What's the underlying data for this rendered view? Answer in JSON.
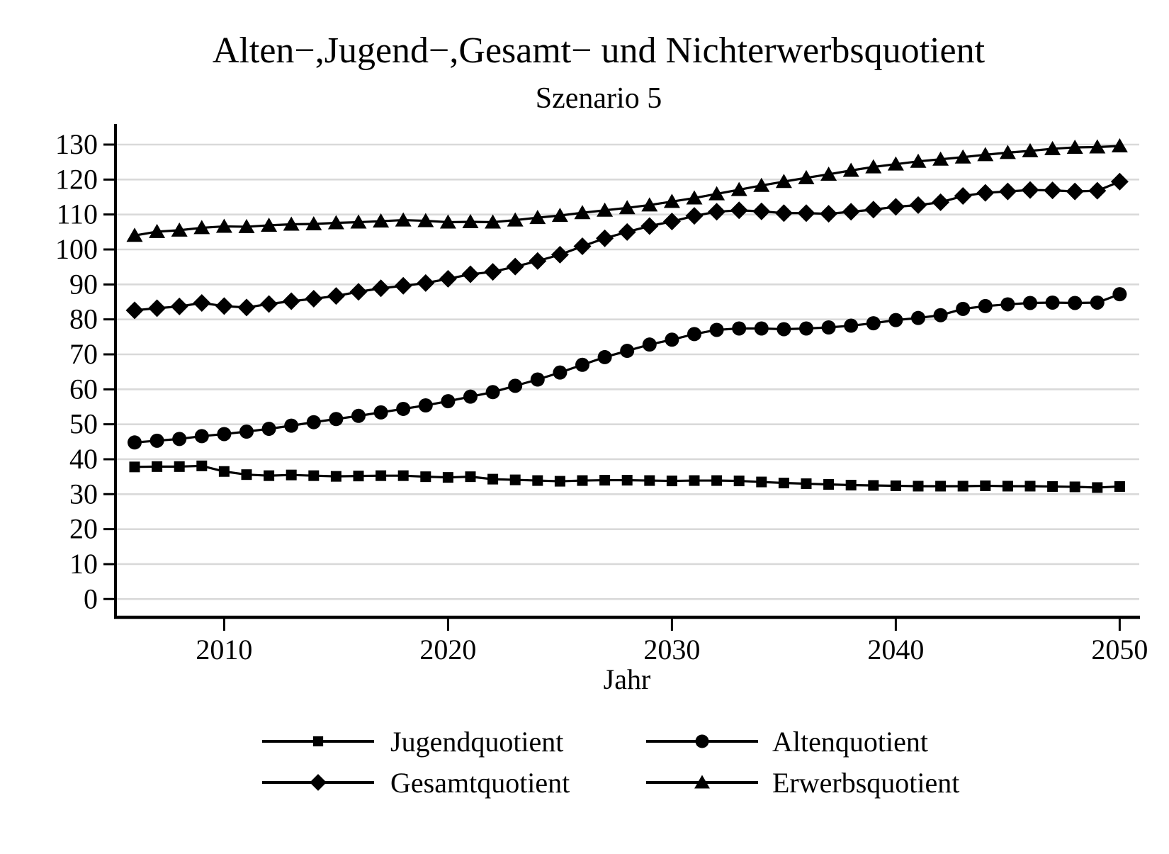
{
  "title": "Alten−,Jugend−,Gesamt− und Nichterwerbsquotient",
  "subtitle": "Szenario 5",
  "x_axis": {
    "label": "Jahr",
    "ticks": [
      2010,
      2020,
      2030,
      2040,
      2050
    ]
  },
  "y_axis": {
    "ticks": [
      0,
      10,
      20,
      30,
      40,
      50,
      60,
      70,
      80,
      90,
      100,
      110,
      120,
      130
    ]
  },
  "legend": {
    "items": [
      {
        "label": "Jugendquotient",
        "marker": "square"
      },
      {
        "label": "Altenquotient",
        "marker": "circle"
      },
      {
        "label": "Gesamtquotient",
        "marker": "diamond"
      },
      {
        "label": "Erwerbsquotient",
        "marker": "triangle"
      }
    ]
  },
  "colors": {
    "line": "#000000",
    "grid": "#d9d9d9",
    "background": "#ffffff"
  },
  "chart_data": {
    "type": "line",
    "title": "Alten−,Jugend−,Gesamt− und Nichterwerbsquotient",
    "subtitle": "Szenario 5",
    "xlabel": "Jahr",
    "ylabel": "",
    "xlim": [
      2005,
      2051
    ],
    "ylim": [
      0,
      130
    ],
    "grid": "horizontal",
    "legend_position": "bottom",
    "x": [
      2006,
      2007,
      2008,
      2009,
      2010,
      2011,
      2012,
      2013,
      2014,
      2015,
      2016,
      2017,
      2018,
      2019,
      2020,
      2021,
      2022,
      2023,
      2024,
      2025,
      2026,
      2027,
      2028,
      2029,
      2030,
      2031,
      2032,
      2033,
      2034,
      2035,
      2036,
      2037,
      2038,
      2039,
      2040,
      2041,
      2042,
      2043,
      2044,
      2045,
      2046,
      2047,
      2048,
      2049,
      2050
    ],
    "series": [
      {
        "name": "Jugendquotient",
        "marker": "square",
        "values": [
          37.8,
          37.9,
          37.9,
          38.1,
          36.5,
          35.6,
          35.3,
          35.5,
          35.3,
          35.1,
          35.2,
          35.3,
          35.3,
          35.0,
          34.8,
          35.0,
          34.3,
          34.1,
          33.9,
          33.7,
          33.9,
          34.0,
          34.0,
          33.9,
          33.8,
          33.9,
          33.9,
          33.8,
          33.5,
          33.2,
          33.0,
          32.8,
          32.6,
          32.5,
          32.4,
          32.3,
          32.3,
          32.3,
          32.4,
          32.3,
          32.3,
          32.2,
          32.1,
          31.9,
          32.2
        ]
      },
      {
        "name": "Altenquotient",
        "marker": "circle",
        "values": [
          44.8,
          45.3,
          45.8,
          46.6,
          47.2,
          47.9,
          48.7,
          49.6,
          50.6,
          51.5,
          52.4,
          53.4,
          54.4,
          55.4,
          56.6,
          57.9,
          59.2,
          61.0,
          62.8,
          64.8,
          67.0,
          69.2,
          71.0,
          72.8,
          74.2,
          75.8,
          77.0,
          77.4,
          77.4,
          77.2,
          77.4,
          77.7,
          78.2,
          78.9,
          79.8,
          80.4,
          81.2,
          83.0,
          83.8,
          84.3,
          84.7,
          84.8,
          84.7,
          84.8,
          87.2
        ]
      },
      {
        "name": "Gesamtquotient",
        "marker": "diamond",
        "values": [
          82.6,
          83.2,
          83.7,
          84.7,
          83.8,
          83.4,
          84.4,
          85.2,
          85.9,
          86.7,
          87.9,
          88.9,
          89.6,
          90.4,
          91.6,
          92.9,
          93.6,
          95.1,
          96.7,
          98.5,
          100.9,
          103.2,
          105.0,
          106.7,
          108.0,
          109.6,
          110.8,
          111.2,
          110.9,
          110.4,
          110.4,
          110.2,
          110.8,
          111.4,
          112.2,
          112.7,
          113.5,
          115.3,
          116.2,
          116.6,
          117.0,
          116.9,
          116.6,
          116.8,
          119.4
        ]
      },
      {
        "name": "Erwerbsquotient",
        "marker": "triangle",
        "values": [
          104.0,
          105.1,
          105.5,
          106.2,
          106.6,
          106.5,
          106.9,
          107.2,
          107.3,
          107.6,
          107.8,
          108.1,
          108.4,
          108.2,
          107.8,
          107.9,
          107.8,
          108.4,
          109.1,
          109.7,
          110.5,
          111.2,
          111.9,
          112.7,
          113.7,
          114.7,
          115.9,
          117.1,
          118.3,
          119.4,
          120.5,
          121.5,
          122.6,
          123.6,
          124.4,
          125.2,
          125.8,
          126.4,
          127.1,
          127.7,
          128.2,
          128.8,
          129.2,
          129.3,
          129.6
        ]
      }
    ]
  }
}
